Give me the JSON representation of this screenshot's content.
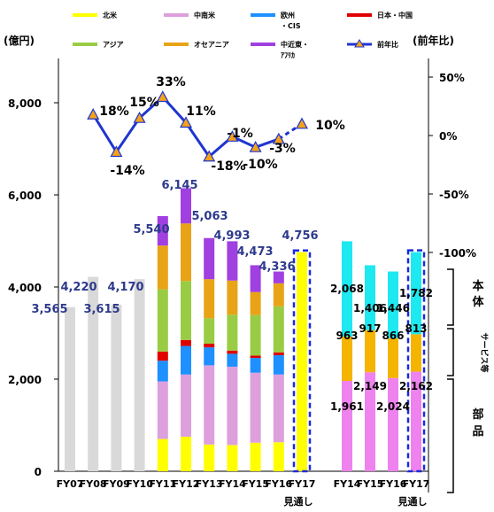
{
  "chart_data": [
    {
      "type": "bar",
      "subtype": "stacked bar with line overlay",
      "left_axis_unit": "(億円)",
      "right_axis_unit": "(前年比)",
      "y_ticks": [
        "0",
        "2,000",
        "4,000",
        "6,000",
        "8,000"
      ],
      "y2_ticks": [
        "-100%",
        "-50%",
        "0%",
        "50%"
      ],
      "ylim": [
        0,
        8000
      ],
      "y2lim": [
        -100,
        50
      ],
      "categories": [
        "FY07",
        "FY08",
        "FY09",
        "FY10",
        "FY11",
        "FY12",
        "FY13",
        "FY14",
        "FY15",
        "FY16",
        "FY17"
      ],
      "forecast_label": "見通し",
      "legend": [
        "北米",
        "中南米",
        "欧州\n・CIS",
        "日本・中国",
        "アジア",
        "オセアニア",
        "中近東・\nｱﾌﾘｶ",
        "前年比"
      ],
      "colors": {
        "北米": "#ffff00",
        "中南米": "#dda0dd",
        "欧州・CIS": "#1e90ff",
        "日本・中国": "#e00000",
        "アジア": "#99cc44",
        "オセアニア": "#e8a317",
        "中近東・ｱﾌﾘｶ": "#a040e0",
        "total_only": "#d9d9d9",
        "line": "#1f35d0",
        "marker": "#f3a21a"
      },
      "totals": [
        "3,565",
        "4,220",
        "3,615",
        "4,170",
        "5,540",
        "6,145",
        "5,063",
        "4,993",
        "4,473",
        "4,336",
        "4,756"
      ],
      "total_values": [
        3565,
        4220,
        3615,
        4170,
        5540,
        6145,
        5063,
        4993,
        4473,
        4336,
        4756
      ],
      "series": [
        {
          "name": "北米",
          "values": [
            null,
            null,
            null,
            null,
            700,
            750,
            580,
            570,
            620,
            630,
            null
          ]
        },
        {
          "name": "中南米",
          "values": [
            null,
            null,
            null,
            null,
            1250,
            1350,
            1720,
            1700,
            1520,
            1470,
            null
          ]
        },
        {
          "name": "欧州・CIS",
          "values": [
            null,
            null,
            null,
            null,
            450,
            620,
            390,
            280,
            320,
            420,
            null
          ]
        },
        {
          "name": "日本・中国",
          "values": [
            null,
            null,
            null,
            null,
            200,
            130,
            80,
            70,
            50,
            60,
            null
          ]
        },
        {
          "name": "アジア",
          "values": [
            null,
            null,
            null,
            null,
            1350,
            1280,
            550,
            780,
            880,
            1000,
            null
          ]
        },
        {
          "name": "オセアニア",
          "values": [
            null,
            null,
            null,
            null,
            950,
            1250,
            850,
            740,
            500,
            500,
            null
          ]
        },
        {
          "name": "中近東・ｱﾌﾘｶ",
          "values": [
            null,
            null,
            null,
            null,
            640,
            765,
            893,
            853,
            583,
            256,
            null
          ]
        }
      ],
      "yoy": {
        "name": "前年比",
        "labels": [
          "18%",
          "-14%",
          "15%",
          "33%",
          "11%",
          "-18%",
          "-1%",
          "-10%",
          "-3%",
          "10%"
        ],
        "values": [
          18,
          -14,
          15,
          33,
          11,
          -18,
          -1,
          -10,
          -3,
          10
        ]
      }
    },
    {
      "type": "bar",
      "subtype": "stacked bar",
      "categories": [
        "FY14",
        "FY15",
        "FY16",
        "FY17"
      ],
      "forecast_label": "見通し",
      "colors": {
        "部品": "#ee82ee",
        "サービス等": "#f4b400",
        "本体": "#1ee8f0"
      },
      "series": [
        {
          "name": "部品",
          "labels": [
            "1,961",
            "2,149",
            "2,024",
            "2,162"
          ],
          "values": [
            1961,
            2149,
            2024,
            2162
          ]
        },
        {
          "name": "サービス等",
          "labels": [
            "963",
            "917",
            "866",
            "813"
          ],
          "values": [
            963,
            917,
            866,
            813
          ]
        },
        {
          "name": "本体",
          "labels": [
            "2,068",
            "1,406",
            "1,446",
            "1,782"
          ],
          "values": [
            2068,
            1406,
            1446,
            1782
          ]
        }
      ],
      "side_labels": [
        "本体",
        "サービス等",
        "部品"
      ]
    }
  ]
}
